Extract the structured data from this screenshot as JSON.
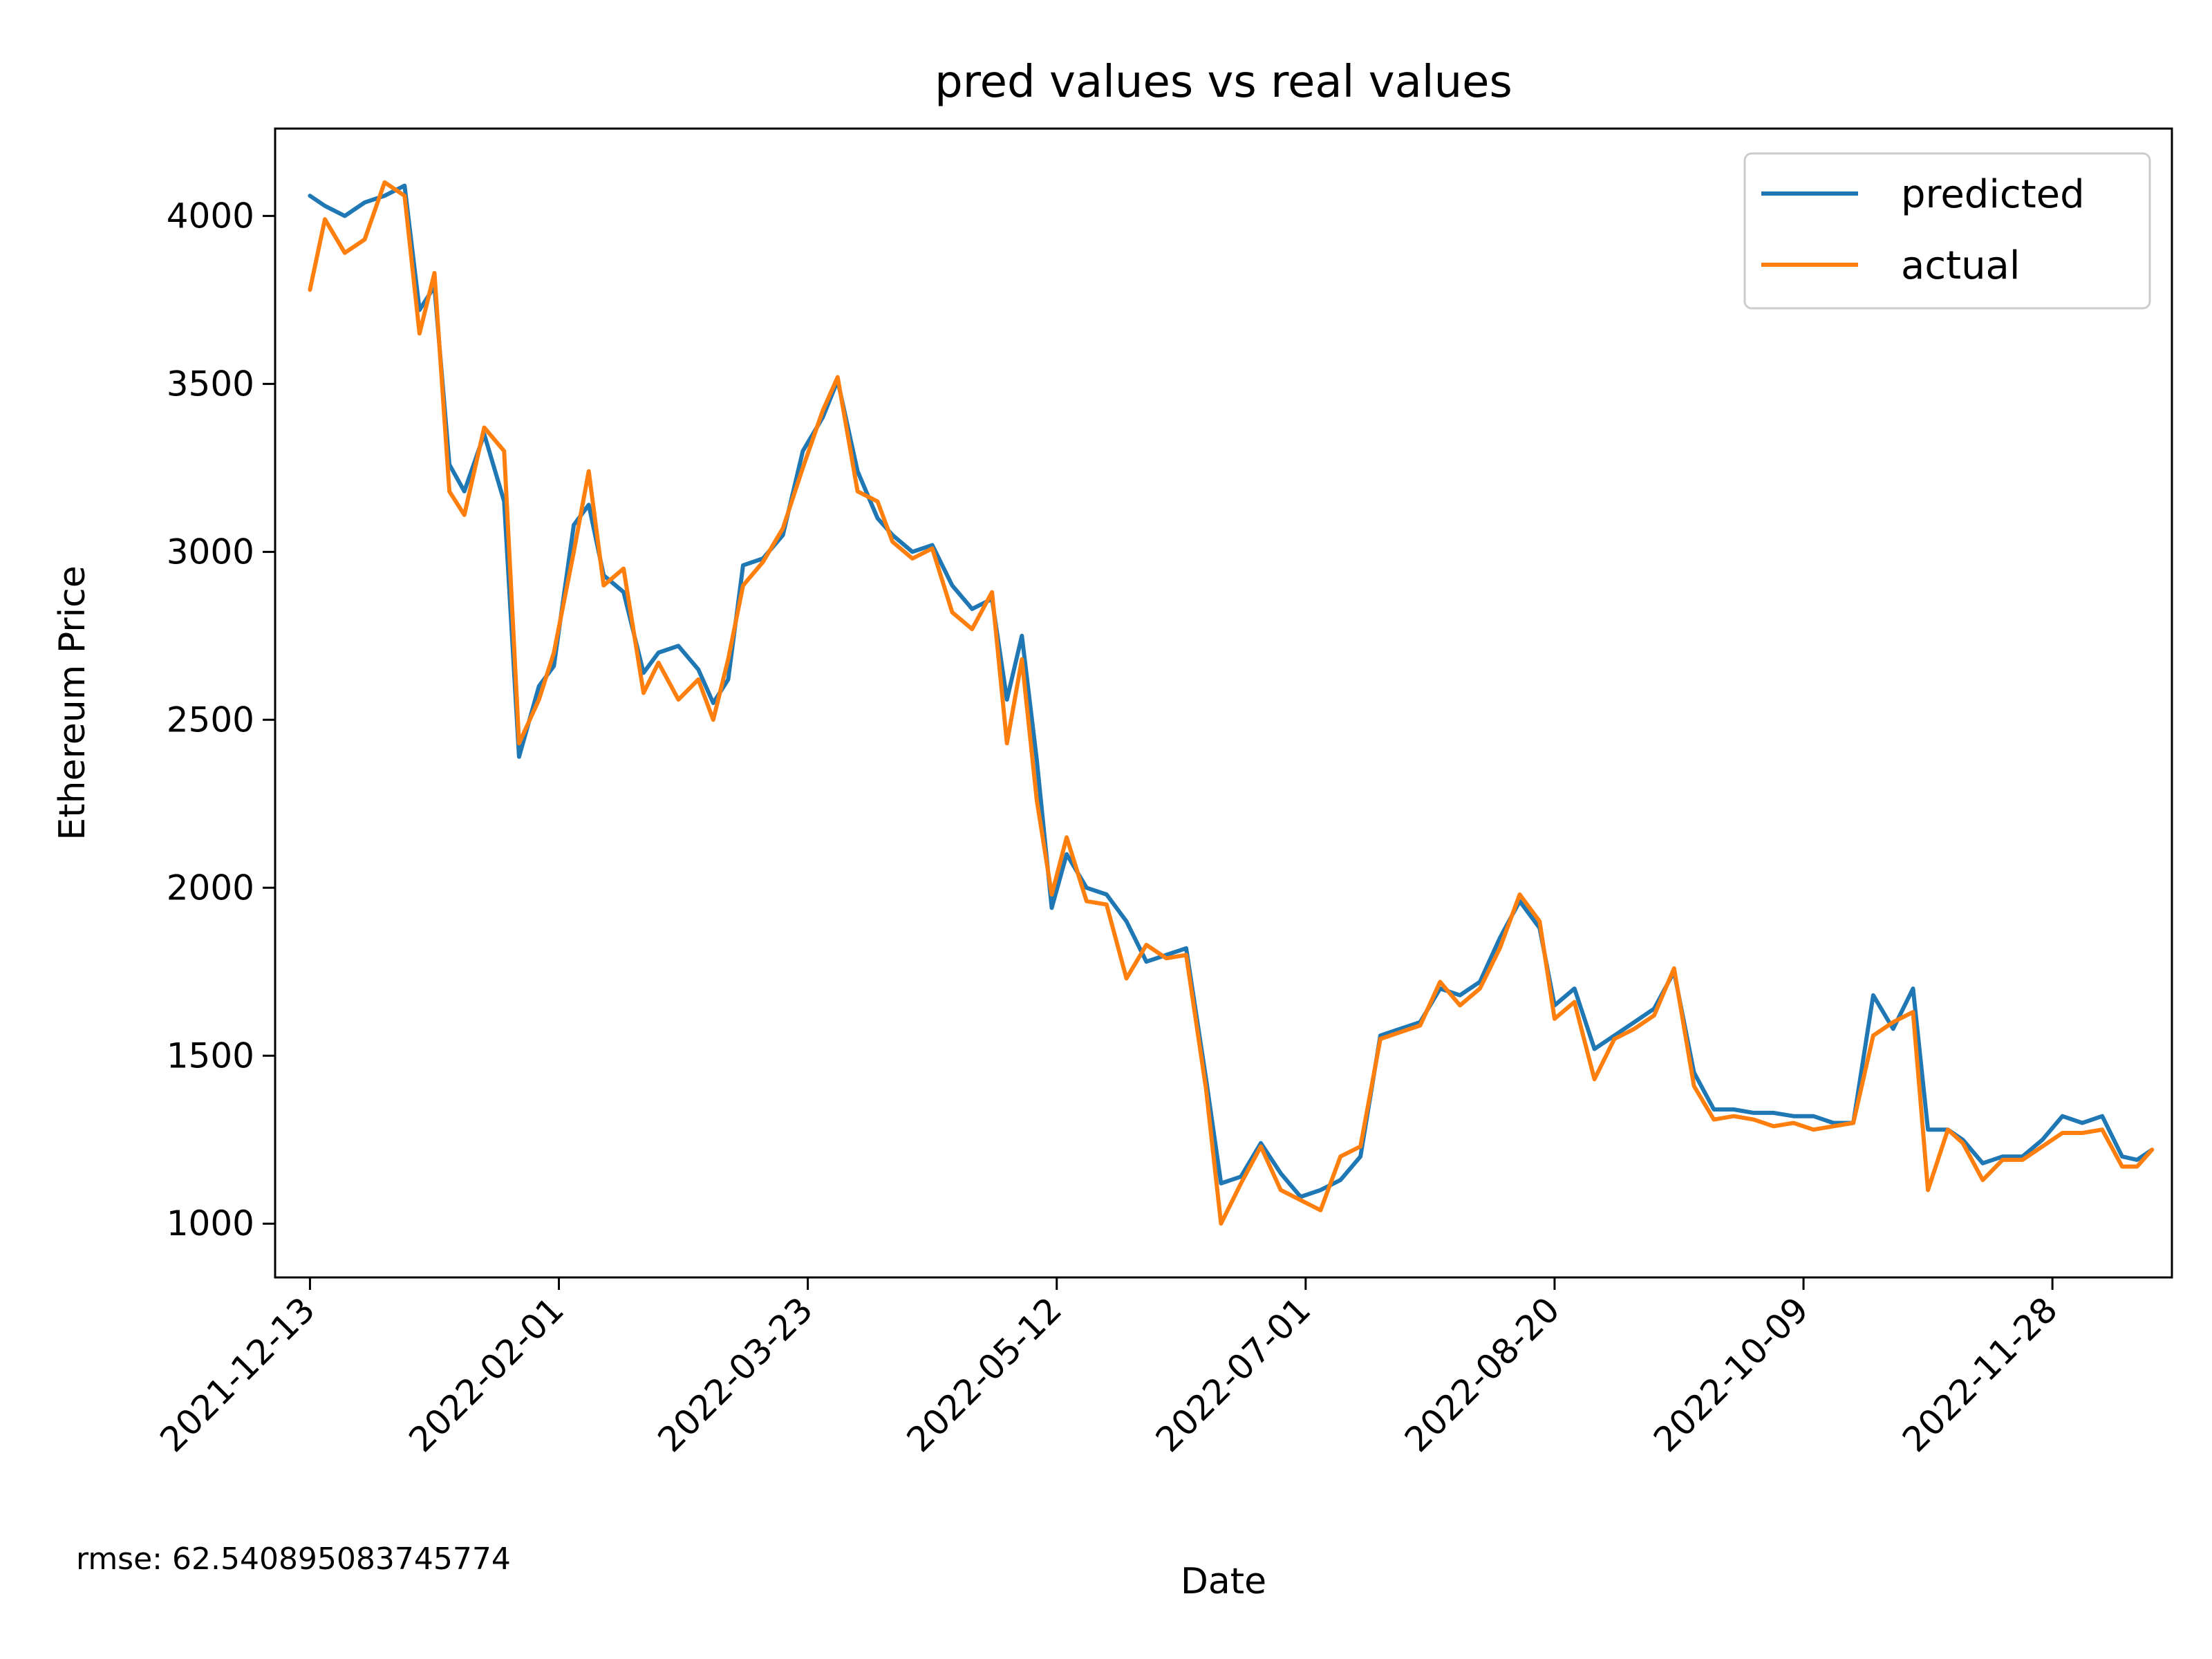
{
  "chart_data": {
    "type": "line",
    "title": "pred values vs real values",
    "xlabel": "Date",
    "ylabel": "Ethereum Price",
    "x_range": [
      "2021-12-06",
      "2022-12-22"
    ],
    "ylim": [
      840,
      4260
    ],
    "x_ticks": [
      "2021-12-13",
      "2022-02-01",
      "2022-03-23",
      "2022-05-12",
      "2022-07-01",
      "2022-08-20",
      "2022-10-09",
      "2022-11-28"
    ],
    "y_ticks": [
      1000,
      1500,
      2000,
      2500,
      3000,
      3500,
      4000
    ],
    "grid": false,
    "legend_position": "top-right",
    "annotation": "rmse: 62.540895083745774",
    "series": [
      {
        "name": "predicted",
        "color": "#1f77b4",
        "x": [
          "2021-12-13",
          "2021-12-16",
          "2021-12-20",
          "2021-12-24",
          "2021-12-28",
          "2022-01-01",
          "2022-01-04",
          "2022-01-07",
          "2022-01-10",
          "2022-01-13",
          "2022-01-17",
          "2022-01-21",
          "2022-01-24",
          "2022-01-28",
          "2022-01-31",
          "2022-02-04",
          "2022-02-07",
          "2022-02-10",
          "2022-02-14",
          "2022-02-18",
          "2022-02-21",
          "2022-02-25",
          "2022-03-01",
          "2022-03-04",
          "2022-03-07",
          "2022-03-10",
          "2022-03-14",
          "2022-03-18",
          "2022-03-22",
          "2022-03-26",
          "2022-03-29",
          "2022-04-02",
          "2022-04-06",
          "2022-04-09",
          "2022-04-13",
          "2022-04-17",
          "2022-04-21",
          "2022-04-25",
          "2022-04-29",
          "2022-05-02",
          "2022-05-05",
          "2022-05-08",
          "2022-05-11",
          "2022-05-14",
          "2022-05-18",
          "2022-05-22",
          "2022-05-26",
          "2022-05-30",
          "2022-06-03",
          "2022-06-07",
          "2022-06-11",
          "2022-06-14",
          "2022-06-18",
          "2022-06-22",
          "2022-06-26",
          "2022-06-30",
          "2022-07-04",
          "2022-07-08",
          "2022-07-12",
          "2022-07-16",
          "2022-07-20",
          "2022-07-24",
          "2022-07-28",
          "2022-08-01",
          "2022-08-05",
          "2022-08-09",
          "2022-08-13",
          "2022-08-17",
          "2022-08-20",
          "2022-08-24",
          "2022-08-28",
          "2022-09-01",
          "2022-09-05",
          "2022-09-09",
          "2022-09-13",
          "2022-09-17",
          "2022-09-21",
          "2022-09-25",
          "2022-09-29",
          "2022-10-03",
          "2022-10-07",
          "2022-10-11",
          "2022-10-15",
          "2022-10-19",
          "2022-10-23",
          "2022-10-27",
          "2022-10-31",
          "2022-11-03",
          "2022-11-07",
          "2022-11-10",
          "2022-11-14",
          "2022-11-18",
          "2022-11-22",
          "2022-11-26",
          "2022-11-30",
          "2022-12-04",
          "2022-12-08",
          "2022-12-12",
          "2022-12-15",
          "2022-12-18"
        ],
        "values": [
          4060,
          4030,
          4000,
          4040,
          4060,
          4090,
          3720,
          3790,
          3260,
          3180,
          3350,
          3150,
          2390,
          2600,
          2660,
          3080,
          3140,
          2930,
          2880,
          2640,
          2700,
          2720,
          2650,
          2550,
          2620,
          2960,
          2980,
          3050,
          3300,
          3400,
          3510,
          3240,
          3100,
          3050,
          3000,
          3020,
          2900,
          2830,
          2860,
          2560,
          2750,
          2380,
          1940,
          2100,
          2000,
          1980,
          1900,
          1780,
          1800,
          1820,
          1430,
          1120,
          1140,
          1240,
          1150,
          1080,
          1100,
          1130,
          1200,
          1560,
          1580,
          1600,
          1700,
          1680,
          1720,
          1850,
          1960,
          1880,
          1650,
          1700,
          1520,
          1560,
          1600,
          1640,
          1750,
          1450,
          1340,
          1340,
          1330,
          1330,
          1320,
          1320,
          1300,
          1300,
          1680,
          1580,
          1700,
          1280,
          1280,
          1250,
          1180,
          1200,
          1200,
          1250,
          1320,
          1300,
          1320,
          1200,
          1190,
          1220
        ]
      },
      {
        "name": "actual",
        "color": "#ff7f0e",
        "x": [
          "2021-12-13",
          "2021-12-16",
          "2021-12-20",
          "2021-12-24",
          "2021-12-28",
          "2022-01-01",
          "2022-01-04",
          "2022-01-07",
          "2022-01-10",
          "2022-01-13",
          "2022-01-17",
          "2022-01-21",
          "2022-01-24",
          "2022-01-28",
          "2022-01-31",
          "2022-02-04",
          "2022-02-07",
          "2022-02-10",
          "2022-02-14",
          "2022-02-18",
          "2022-02-21",
          "2022-02-25",
          "2022-03-01",
          "2022-03-04",
          "2022-03-07",
          "2022-03-10",
          "2022-03-14",
          "2022-03-18",
          "2022-03-22",
          "2022-03-26",
          "2022-03-29",
          "2022-04-02",
          "2022-04-06",
          "2022-04-09",
          "2022-04-13",
          "2022-04-17",
          "2022-04-21",
          "2022-04-25",
          "2022-04-29",
          "2022-05-02",
          "2022-05-05",
          "2022-05-08",
          "2022-05-11",
          "2022-05-14",
          "2022-05-18",
          "2022-05-22",
          "2022-05-26",
          "2022-05-30",
          "2022-06-03",
          "2022-06-07",
          "2022-06-11",
          "2022-06-14",
          "2022-06-18",
          "2022-06-22",
          "2022-06-26",
          "2022-06-30",
          "2022-07-04",
          "2022-07-08",
          "2022-07-12",
          "2022-07-16",
          "2022-07-20",
          "2022-07-24",
          "2022-07-28",
          "2022-08-01",
          "2022-08-05",
          "2022-08-09",
          "2022-08-13",
          "2022-08-17",
          "2022-08-20",
          "2022-08-24",
          "2022-08-28",
          "2022-09-01",
          "2022-09-05",
          "2022-09-09",
          "2022-09-13",
          "2022-09-17",
          "2022-09-21",
          "2022-09-25",
          "2022-09-29",
          "2022-10-03",
          "2022-10-07",
          "2022-10-11",
          "2022-10-15",
          "2022-10-19",
          "2022-10-23",
          "2022-10-27",
          "2022-10-31",
          "2022-11-03",
          "2022-11-07",
          "2022-11-10",
          "2022-11-14",
          "2022-11-18",
          "2022-11-22",
          "2022-11-26",
          "2022-11-30",
          "2022-12-04",
          "2022-12-08",
          "2022-12-12",
          "2022-12-15",
          "2022-12-18"
        ],
        "values": [
          3780,
          3990,
          3890,
          3930,
          4100,
          4060,
          3650,
          3830,
          3180,
          3110,
          3370,
          3300,
          2430,
          2560,
          2700,
          3000,
          3240,
          2900,
          2950,
          2580,
          2670,
          2560,
          2620,
          2500,
          2680,
          2900,
          2970,
          3070,
          3250,
          3420,
          3520,
          3180,
          3150,
          3030,
          2980,
          3010,
          2820,
          2770,
          2880,
          2430,
          2680,
          2260,
          1980,
          2150,
          1960,
          1950,
          1730,
          1830,
          1790,
          1800,
          1400,
          1000,
          1120,
          1230,
          1100,
          1070,
          1040,
          1200,
          1230,
          1550,
          1570,
          1590,
          1720,
          1650,
          1700,
          1820,
          1980,
          1900,
          1610,
          1660,
          1430,
          1550,
          1580,
          1620,
          1760,
          1410,
          1310,
          1320,
          1310,
          1290,
          1300,
          1280,
          1290,
          1300,
          1560,
          1600,
          1630,
          1100,
          1280,
          1240,
          1130,
          1190,
          1190,
          1230,
          1270,
          1270,
          1280,
          1170,
          1170,
          1220
        ]
      }
    ]
  }
}
